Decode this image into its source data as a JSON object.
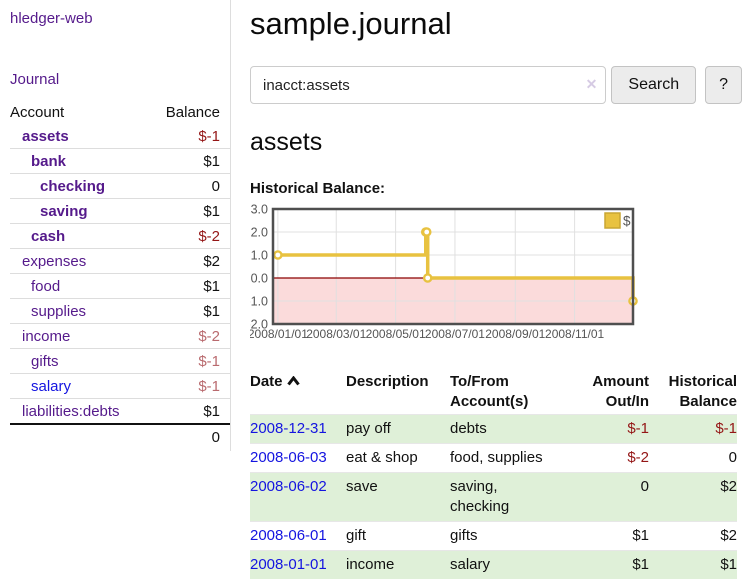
{
  "app": {
    "brand": "hledger-web",
    "nav_journal": "Journal"
  },
  "sidebar": {
    "header": {
      "account": "Account",
      "balance": "Balance"
    },
    "rows": [
      {
        "name": "assets",
        "indent": 0,
        "bold": true,
        "balance": "$-1",
        "neg": "strong",
        "link": "visited"
      },
      {
        "name": "bank",
        "indent": 1,
        "bold": true,
        "balance": "$1",
        "neg": "none",
        "link": "visited"
      },
      {
        "name": "checking",
        "indent": 2,
        "bold": true,
        "balance": "0",
        "neg": "none",
        "link": "visited"
      },
      {
        "name": "saving",
        "indent": 2,
        "bold": true,
        "balance": "$1",
        "neg": "none",
        "link": "visited"
      },
      {
        "name": "cash",
        "indent": 1,
        "bold": true,
        "balance": "$-2",
        "neg": "strong",
        "link": "visited"
      },
      {
        "name": "expenses",
        "indent": 0,
        "bold": false,
        "balance": "$2",
        "neg": "none",
        "link": "visited"
      },
      {
        "name": "food",
        "indent": 1,
        "bold": false,
        "balance": "$1",
        "neg": "none",
        "link": "visited"
      },
      {
        "name": "supplies",
        "indent": 1,
        "bold": false,
        "balance": "$1",
        "neg": "none",
        "link": "visited"
      },
      {
        "name": "income",
        "indent": 0,
        "bold": false,
        "balance": "$-2",
        "neg": "dim",
        "link": "visited"
      },
      {
        "name": "gifts",
        "indent": 1,
        "bold": false,
        "balance": "$-1",
        "neg": "dim",
        "link": "visited"
      },
      {
        "name": "salary",
        "indent": 1,
        "bold": false,
        "balance": "$-1",
        "neg": "dim",
        "link": "blue"
      },
      {
        "name": "liabilities:debts",
        "indent": 0,
        "bold": false,
        "balance": "$1",
        "neg": "none",
        "link": "visited"
      }
    ],
    "total": "0"
  },
  "header": {
    "title": "sample.journal"
  },
  "search": {
    "value": "inacct:assets",
    "clear_icon": "✕",
    "button": "Search",
    "help": "?"
  },
  "account_page": {
    "title": "assets",
    "chart_label": "Historical Balance:"
  },
  "chart_data": {
    "type": "line",
    "step": true,
    "title": "Historical Balance:",
    "series": [
      {
        "name": "$",
        "color": "#e8c240",
        "points": [
          [
            "2008-01-01",
            1
          ],
          [
            "2008-06-01",
            2
          ],
          [
            "2008-06-02",
            2
          ],
          [
            "2008-06-03",
            0
          ],
          [
            "2008-12-31",
            -1
          ]
        ]
      }
    ],
    "x_ticks": [
      "2008/01/01",
      "2008/03/01",
      "2008/05/01",
      "2008/07/01",
      "2008/09/01",
      "2008/11/01"
    ],
    "y_ticks": [
      3.0,
      2.0,
      1.0,
      0.0,
      -1.0,
      -2.0
    ],
    "ylim": [
      -2,
      3
    ],
    "x_range": [
      "2007-12-27",
      "2008-12-31"
    ],
    "grid": true,
    "negative_region_fill": "#fbdbdb",
    "zero_line_color": "#8b0000",
    "legend_position": "top-right",
    "legend_label": "$"
  },
  "transactions": {
    "headers": {
      "date": "Date",
      "description": "Description",
      "accounts": "To/From Account(s)",
      "amount": "Amount Out/In",
      "balance": "Historical Balance"
    },
    "rows": [
      {
        "date": "2008-12-31",
        "description": "pay off",
        "accounts": "debts",
        "amount": "$-1",
        "amount_neg": true,
        "balance": "$-1",
        "balance_neg": true
      },
      {
        "date": "2008-06-03",
        "description": "eat & shop",
        "accounts": "food, supplies",
        "amount": "$-2",
        "amount_neg": true,
        "balance": "0",
        "balance_neg": false
      },
      {
        "date": "2008-06-02",
        "description": "save",
        "accounts": "saving, checking",
        "amount": "0",
        "amount_neg": false,
        "balance": "$2",
        "balance_neg": false
      },
      {
        "date": "2008-06-01",
        "description": "gift",
        "accounts": "gifts",
        "amount": "$1",
        "amount_neg": false,
        "balance": "$2",
        "balance_neg": false
      },
      {
        "date": "2008-01-01",
        "description": "income",
        "accounts": "salary",
        "amount": "$1",
        "amount_neg": false,
        "balance": "$1",
        "balance_neg": false
      }
    ]
  },
  "colors": {
    "visited_link": "#551A8B",
    "unvisited_link": "#1414e0",
    "negative_strong": "#941616",
    "negative_dim": "#b96a6e",
    "row_stripe_green": "#dff0d8",
    "chart_line_gold": "#e8c240"
  }
}
